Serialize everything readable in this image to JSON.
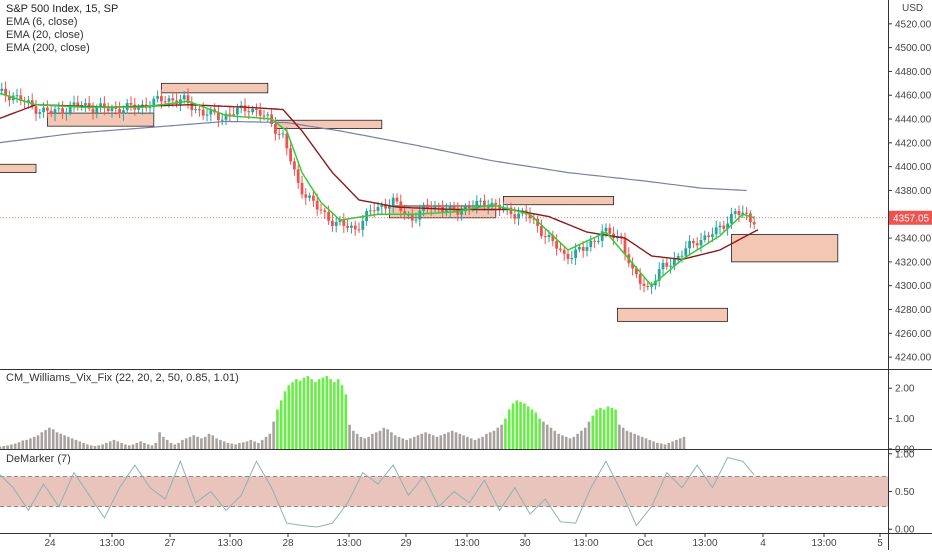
{
  "header": {
    "title": "S&P 500 Index, 15, SP",
    "indicators": [
      "EMA (6, close)",
      "EMA (20, close)",
      "EMA (200, close)"
    ],
    "currency": "USD"
  },
  "colors": {
    "bull": "#26a69a",
    "bear": "#ef5350",
    "ema6": "#33cc33",
    "ema20": "#8b1a1a",
    "ema200": "#7b7fa8",
    "zone_fill": "#f4c7b5",
    "zone_stroke": "#222222",
    "vix_high": "#66ee44",
    "vix_low": "#a8a29e",
    "demarker_line": "#8fb3b0",
    "demarker_band": "#e8c4bd",
    "price_tag": "#ef5350"
  },
  "chart_data": [
    {
      "type": "candlestick",
      "name": "price",
      "ylim": [
        4230,
        4540
      ],
      "y_ticks": [
        4240,
        4260,
        4280,
        4300,
        4320,
        4340,
        4360,
        4380,
        4400,
        4420,
        4440,
        4460,
        4480,
        4500,
        4520
      ],
      "x_ticks": [
        "24",
        "13:00",
        "27",
        "13:00",
        "28",
        "13:00",
        "29",
        "13:00",
        "30",
        "13:00",
        "Oct",
        "13:00",
        "4",
        "13:00",
        "5"
      ],
      "last_price": "4357.05",
      "anchors": [
        [
          0,
          4462
        ],
        [
          5,
          4460
        ],
        [
          10,
          4450
        ],
        [
          15,
          4445
        ],
        [
          22,
          4452
        ],
        [
          30,
          4448
        ],
        [
          38,
          4450
        ],
        [
          45,
          4457
        ],
        [
          50,
          4455
        ],
        [
          55,
          4445
        ],
        [
          60,
          4442
        ],
        [
          67,
          4450
        ],
        [
          72,
          4440
        ],
        [
          76,
          4425
        ],
        [
          80,
          4385
        ],
        [
          85,
          4365
        ],
        [
          90,
          4352
        ],
        [
          95,
          4348
        ],
        [
          100,
          4365
        ],
        [
          105,
          4370
        ],
        [
          110,
          4356
        ],
        [
          115,
          4368
        ],
        [
          120,
          4362
        ],
        [
          125,
          4366
        ],
        [
          130,
          4370
        ],
        [
          135,
          4362
        ],
        [
          140,
          4360
        ],
        [
          145,
          4343
        ],
        [
          150,
          4325
        ],
        [
          155,
          4330
        ],
        [
          160,
          4345
        ],
        [
          165,
          4340
        ],
        [
          168,
          4310
        ],
        [
          172,
          4298
        ],
        [
          176,
          4315
        ],
        [
          180,
          4325
        ],
        [
          185,
          4338
        ],
        [
          190,
          4345
        ],
        [
          195,
          4362
        ],
        [
          199,
          4356
        ]
      ],
      "ema6_anchors": [
        [
          0,
          4462
        ],
        [
          10,
          4452
        ],
        [
          22,
          4450
        ],
        [
          38,
          4450
        ],
        [
          50,
          4455
        ],
        [
          60,
          4443
        ],
        [
          72,
          4440
        ],
        [
          76,
          4430
        ],
        [
          80,
          4395
        ],
        [
          85,
          4370
        ],
        [
          90,
          4355
        ],
        [
          100,
          4360
        ],
        [
          110,
          4360
        ],
        [
          120,
          4362
        ],
        [
          130,
          4368
        ],
        [
          140,
          4360
        ],
        [
          150,
          4330
        ],
        [
          160,
          4345
        ],
        [
          168,
          4315
        ],
        [
          172,
          4300
        ],
        [
          180,
          4322
        ],
        [
          190,
          4342
        ],
        [
          196,
          4360
        ],
        [
          199,
          4357
        ]
      ],
      "ema20_anchors": [
        [
          0,
          4440
        ],
        [
          10,
          4452
        ],
        [
          30,
          4450
        ],
        [
          50,
          4452
        ],
        [
          65,
          4450
        ],
        [
          75,
          4448
        ],
        [
          80,
          4430
        ],
        [
          88,
          4395
        ],
        [
          95,
          4372
        ],
        [
          105,
          4366
        ],
        [
          120,
          4364
        ],
        [
          135,
          4364
        ],
        [
          145,
          4358
        ],
        [
          155,
          4345
        ],
        [
          165,
          4340
        ],
        [
          172,
          4325
        ],
        [
          180,
          4322
        ],
        [
          190,
          4330
        ],
        [
          200,
          4347
        ]
      ],
      "ema200_anchors": [
        [
          0,
          4420
        ],
        [
          20,
          4428
        ],
        [
          40,
          4433
        ],
        [
          60,
          4438
        ],
        [
          76,
          4437
        ],
        [
          90,
          4430
        ],
        [
          110,
          4418
        ],
        [
          130,
          4405
        ],
        [
          150,
          4395
        ],
        [
          170,
          4388
        ],
        [
          185,
          4382
        ],
        [
          197,
          4380
        ]
      ],
      "zones": [
        [
          0,
          10,
          4395,
          4402
        ],
        [
          13,
          41,
          4434,
          4445
        ],
        [
          43,
          71,
          4462,
          4470
        ],
        [
          73,
          101,
          4432,
          4439
        ],
        [
          103,
          131,
          4357,
          4367
        ],
        [
          133,
          162,
          4368,
          4375
        ],
        [
          163,
          192,
          4270,
          4281
        ],
        [
          193,
          221,
          4320,
          4343
        ]
      ]
    },
    {
      "type": "bar",
      "name": "CM_Williams_Vix_Fix (22, 20, 2, 50, 0.85, 1.01)",
      "ylim": [
        0,
        2.6
      ],
      "y_ticks": [
        "0.00",
        "1.00",
        "2.00"
      ],
      "values": [
        0.08,
        0.1,
        0.12,
        0.15,
        0.18,
        0.22,
        0.28,
        0.3,
        0.35,
        0.4,
        0.45,
        0.55,
        0.62,
        0.7,
        0.65,
        0.55,
        0.5,
        0.45,
        0.4,
        0.35,
        0.3,
        0.25,
        0.2,
        0.15,
        0.12,
        0.1,
        0.12,
        0.15,
        0.2,
        0.25,
        0.3,
        0.25,
        0.2,
        0.15,
        0.12,
        0.15,
        0.2,
        0.25,
        0.2,
        0.15,
        0.12,
        0.2,
        0.55,
        0.4,
        0.3,
        0.2,
        0.15,
        0.2,
        0.3,
        0.35,
        0.4,
        0.45,
        0.4,
        0.35,
        0.4,
        0.5,
        0.45,
        0.35,
        0.3,
        0.25,
        0.2,
        0.18,
        0.15,
        0.2,
        0.22,
        0.25,
        0.3,
        0.25,
        0.2,
        0.3,
        0.4,
        0.5,
        0.9,
        1.3,
        1.6,
        1.9,
        2.1,
        2.2,
        2.3,
        2.25,
        2.35,
        2.4,
        2.3,
        2.2,
        2.3,
        2.35,
        2.4,
        2.3,
        2.2,
        2.3,
        2.1,
        1.8,
        0.8,
        0.6,
        0.5,
        0.4,
        0.35,
        0.4,
        0.5,
        0.55,
        0.6,
        0.7,
        0.65,
        0.55,
        0.45,
        0.4,
        0.35,
        0.3,
        0.35,
        0.4,
        0.45,
        0.5,
        0.55,
        0.5,
        0.45,
        0.4,
        0.45,
        0.5,
        0.55,
        0.6,
        0.55,
        0.5,
        0.45,
        0.4,
        0.35,
        0.3,
        0.35,
        0.4,
        0.5,
        0.55,
        0.6,
        0.7,
        0.8,
        1.0,
        1.3,
        1.5,
        1.6,
        1.55,
        1.5,
        1.4,
        1.3,
        1.2,
        1.0,
        0.9,
        0.8,
        0.7,
        0.6,
        0.5,
        0.45,
        0.4,
        0.35,
        0.4,
        0.5,
        0.6,
        0.7,
        0.9,
        1.1,
        1.3,
        1.35,
        1.3,
        1.4,
        1.35,
        1.3,
        0.8,
        0.7,
        0.6,
        0.55,
        0.5,
        0.45,
        0.4,
        0.35,
        0.3,
        0.25,
        0.2,
        0.18,
        0.15,
        0.2,
        0.25,
        0.3,
        0.35,
        0.4
      ],
      "high_threshold": 0.85
    },
    {
      "type": "line",
      "name": "DeMarker (7)",
      "ylim": [
        -0.05,
        1.05
      ],
      "y_ticks": [
        "0.00",
        "0.50",
        "1.00"
      ],
      "band": [
        0.3,
        0.7
      ],
      "anchors": [
        [
          0,
          0.75
        ],
        [
          4,
          0.55
        ],
        [
          8,
          0.25
        ],
        [
          12,
          0.6
        ],
        [
          16,
          0.3
        ],
        [
          20,
          0.75
        ],
        [
          24,
          0.45
        ],
        [
          28,
          0.15
        ],
        [
          32,
          0.55
        ],
        [
          36,
          0.85
        ],
        [
          40,
          0.55
        ],
        [
          44,
          0.4
        ],
        [
          48,
          0.9
        ],
        [
          52,
          0.35
        ],
        [
          56,
          0.5
        ],
        [
          60,
          0.25
        ],
        [
          64,
          0.45
        ],
        [
          68,
          0.9
        ],
        [
          72,
          0.55
        ],
        [
          76,
          0.08
        ],
        [
          80,
          0.05
        ],
        [
          84,
          0.03
        ],
        [
          88,
          0.08
        ],
        [
          92,
          0.35
        ],
        [
          96,
          0.75
        ],
        [
          100,
          0.6
        ],
        [
          104,
          0.85
        ],
        [
          108,
          0.45
        ],
        [
          112,
          0.7
        ],
        [
          116,
          0.3
        ],
        [
          120,
          0.5
        ],
        [
          124,
          0.35
        ],
        [
          128,
          0.65
        ],
        [
          132,
          0.25
        ],
        [
          136,
          0.55
        ],
        [
          140,
          0.2
        ],
        [
          144,
          0.4
        ],
        [
          148,
          0.1
        ],
        [
          152,
          0.08
        ],
        [
          156,
          0.55
        ],
        [
          160,
          0.9
        ],
        [
          164,
          0.5
        ],
        [
          168,
          0.05
        ],
        [
          172,
          0.3
        ],
        [
          176,
          0.75
        ],
        [
          180,
          0.55
        ],
        [
          184,
          0.85
        ],
        [
          188,
          0.55
        ],
        [
          192,
          0.95
        ],
        [
          196,
          0.9
        ],
        [
          199,
          0.72
        ]
      ]
    }
  ]
}
